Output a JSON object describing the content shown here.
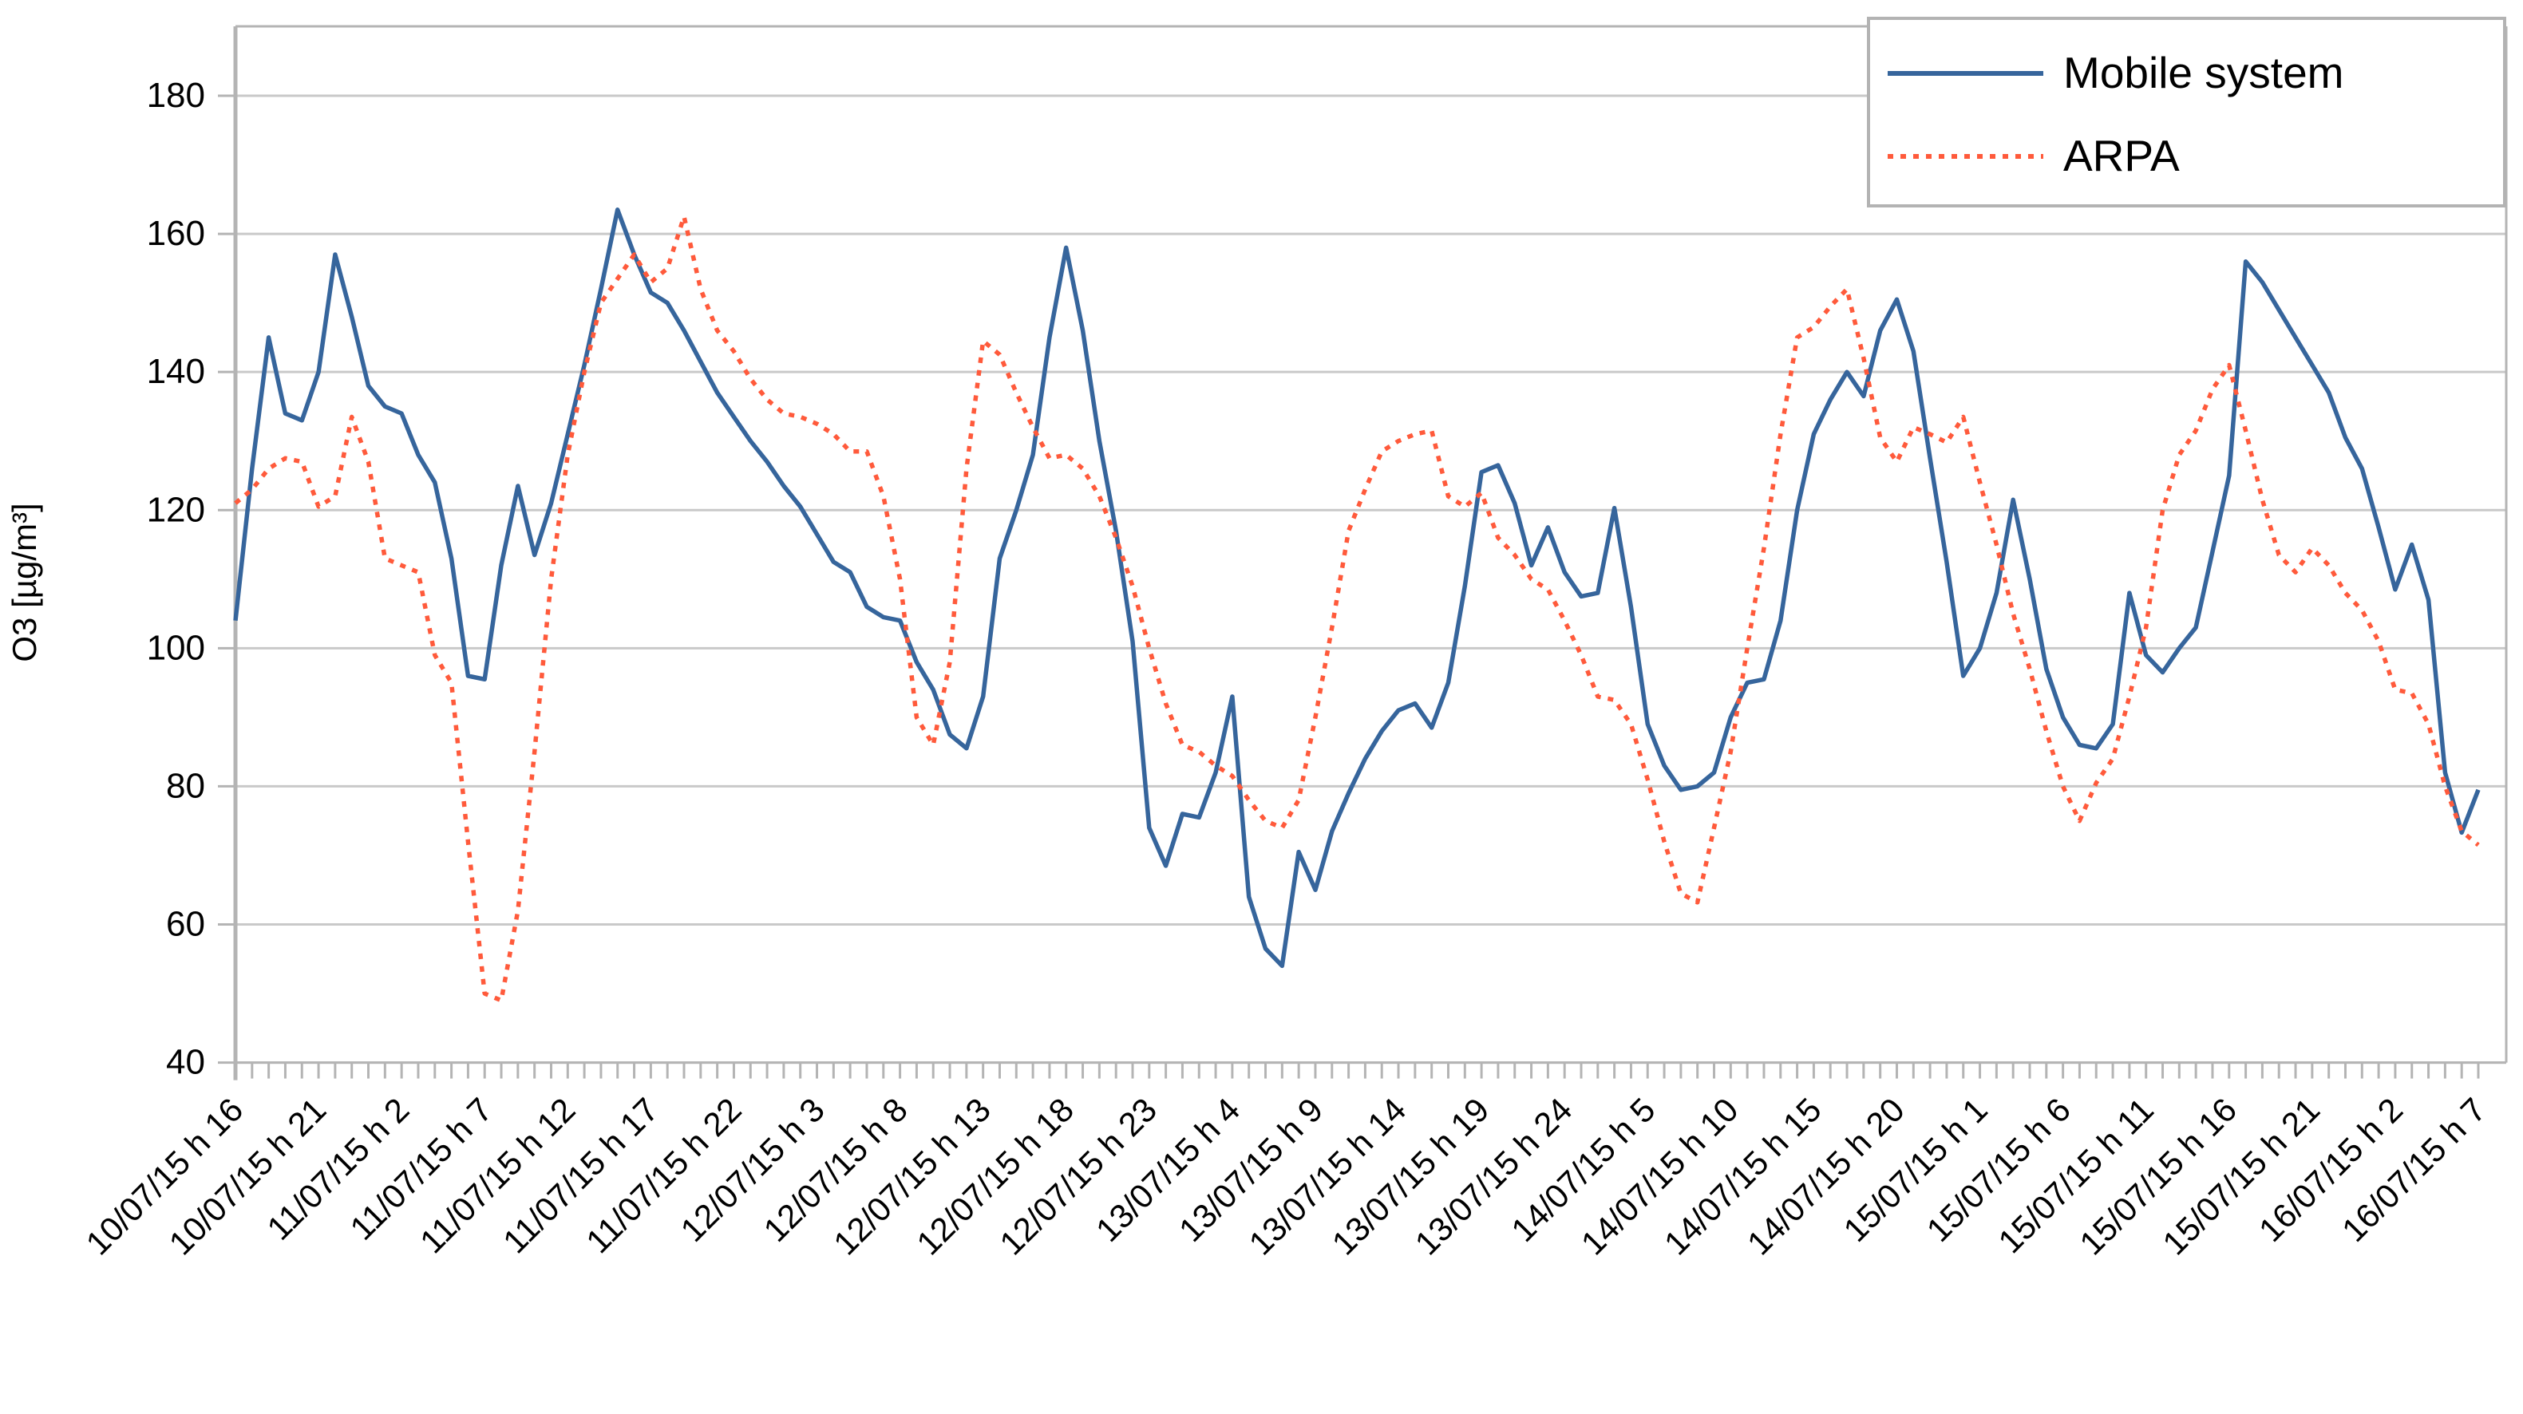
{
  "axes": {
    "y_title": "O3 [µg/m³]"
  },
  "legend": {
    "items": [
      {
        "label": "Mobile system",
        "style": "solid",
        "color": "#36659C"
      },
      {
        "label": "ARPA",
        "style": "dotted",
        "color": "#FF5A3B"
      }
    ]
  },
  "chart_data": {
    "type": "line",
    "title": "",
    "xlabel": "",
    "ylabel": "O3 [µg/m³]",
    "ylim": [
      40,
      180
    ],
    "yticks": [
      40,
      60,
      80,
      100,
      120,
      140,
      160,
      180
    ],
    "grid": true,
    "legend_position": "top-right",
    "n_points": 136,
    "x_label_every": 5,
    "x_labels": [
      "10/07/15 h 16",
      "10/07/15 h 21",
      "11/07/15 h 2",
      "11/07/15 h 7",
      "11/07/15 h 12",
      "11/07/15 h 17",
      "11/07/15 h 22",
      "12/07/15 h 3",
      "12/07/15 h 8",
      "12/07/15 h 13",
      "12/07/15 h 18",
      "12/07/15 h 23",
      "13/07/15 h 4",
      "13/07/15 h 9",
      "13/07/15 h 14",
      "13/07/15 h 19",
      "13/07/15 h 24",
      "14/07/15 h 5",
      "14/07/15 h 10",
      "14/07/15 h 15",
      "14/07/15 h 20",
      "15/07/15 h 1",
      "15/07/15 h 6",
      "15/07/15 h 11",
      "15/07/15 h 16",
      "15/07/15 h 21",
      "16/07/15 h 2",
      "16/07/15 h 7"
    ],
    "series": [
      {
        "name": "Mobile system",
        "color": "#36659C",
        "style": "solid",
        "values": [
          104,
          126,
          145,
          134,
          133,
          140,
          157,
          148,
          138,
          135,
          134,
          128,
          124,
          113,
          96,
          95.5,
          112,
          123.5,
          113.5,
          121,
          131,
          141,
          152,
          163.5,
          157,
          151.5,
          150,
          146,
          141.5,
          137,
          133.5,
          130,
          127,
          123.5,
          120.5,
          116.5,
          112.5,
          111,
          106,
          104.5,
          104,
          98,
          94,
          87.5,
          85.5,
          93,
          113,
          120,
          128,
          145,
          158,
          146,
          130,
          117,
          101,
          74,
          68.5,
          76,
          75.5,
          82,
          93,
          64,
          56.5,
          54,
          70.5,
          65,
          73.5,
          79,
          84,
          88,
          91,
          92,
          88.5,
          95,
          109,
          125.5,
          126.5,
          121,
          112,
          117.5,
          111,
          107.5,
          108,
          120.3,
          106,
          89,
          83,
          79.5,
          80,
          82,
          90,
          95,
          95.5,
          104,
          120,
          131,
          136,
          140,
          136.5,
          146,
          150.5,
          143,
          127.5,
          112.5,
          96,
          100,
          108,
          121.5,
          110,
          97,
          90,
          86,
          85.5,
          89,
          108,
          99,
          96.5,
          100,
          103,
          114,
          125,
          156,
          153,
          149,
          145,
          141,
          137,
          130.5,
          126,
          117.5,
          108.5,
          115,
          107,
          82,
          73.3,
          79.5
        ]
      },
      {
        "name": "ARPA",
        "color": "#FF5A3B",
        "style": "dotted",
        "values": [
          121,
          123,
          126,
          127.5,
          127,
          120.5,
          122,
          133.5,
          127,
          113,
          112,
          111,
          99,
          95,
          72,
          50,
          49,
          62,
          85,
          110,
          128,
          140,
          150,
          153.5,
          157,
          153,
          155,
          162.5,
          152,
          146,
          143,
          139,
          136,
          134,
          133.5,
          132.5,
          131,
          128.5,
          128.5,
          122,
          110,
          90,
          86,
          98,
          126,
          144.5,
          142.5,
          137,
          132,
          127.5,
          128,
          126,
          122,
          116,
          109,
          100,
          92,
          86,
          85,
          83,
          81.5,
          78,
          75,
          74,
          78,
          90,
          103,
          117,
          123,
          128.5,
          130,
          131,
          131.5,
          122,
          120.5,
          122.5,
          116,
          113.5,
          110,
          108.5,
          104,
          99,
          93,
          92.5,
          89,
          81,
          72,
          64.5,
          63.2,
          74,
          85,
          100,
          114.5,
          131,
          145,
          146.5,
          149.5,
          152,
          142,
          130.5,
          127,
          132,
          131,
          129.8,
          133.5,
          124,
          115,
          105,
          97,
          88,
          80,
          75,
          80.5,
          84,
          93,
          103,
          120,
          128,
          131.5,
          137.5,
          141,
          131.5,
          121.5,
          113.5,
          111,
          114.5,
          112,
          108,
          105.5,
          101,
          94,
          93.5,
          89,
          80,
          73.5,
          71.5
        ]
      }
    ],
    "colors": {
      "grid": "#C9C9C9",
      "frame": "#B4B4B4",
      "tick": "#B4B4B4",
      "text": "#000000",
      "background": "#FFFFFF"
    }
  }
}
